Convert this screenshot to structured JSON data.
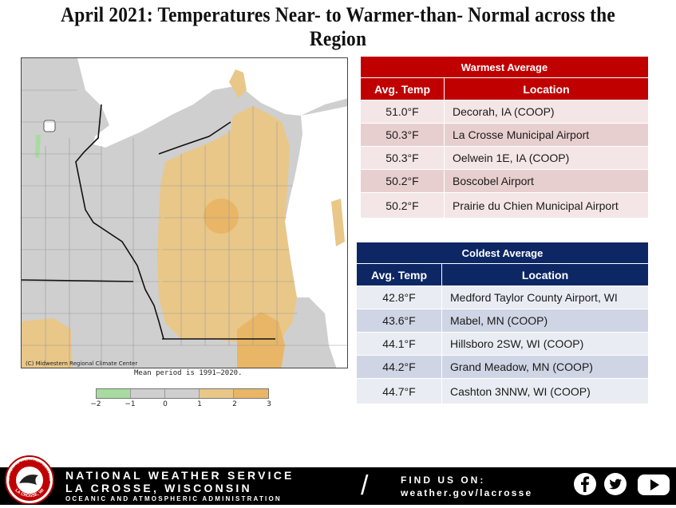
{
  "title": "April 2021: Temperatures Near- to Warmer-than- Normal across the Region",
  "map": {
    "credit": "(C) Midwestern Regional Climate Center",
    "period_note": "Mean period is 1991–2020.",
    "legend": {
      "ticks": [
        "−2",
        "−1",
        "0",
        "1",
        "2",
        "3"
      ],
      "colors": [
        "#a8dba0",
        "#cfcfcf",
        "#cfcfcf",
        "#e9c788",
        "#e8b666"
      ]
    }
  },
  "warmest": {
    "title": "Warmest Average",
    "col_temp": "Avg. Temp",
    "col_loc": "Location",
    "rows": [
      {
        "temp": "51.0°F",
        "loc": "Decorah, IA (COOP)"
      },
      {
        "temp": "50.3°F",
        "loc": "La Crosse Municipal Airport"
      },
      {
        "temp": "50.3°F",
        "loc": "Oelwein 1E, IA (COOP)"
      },
      {
        "temp": "50.2°F",
        "loc": "Boscobel Airport"
      },
      {
        "temp": "50.2°F",
        "loc": "Prairie du Chien Municipal Airport"
      }
    ]
  },
  "coldest": {
    "title": "Coldest Average",
    "col_temp": "Avg. Temp",
    "col_loc": "Location",
    "rows": [
      {
        "temp": "42.8°F",
        "loc": "Medford Taylor County Airport, WI"
      },
      {
        "temp": "43.6°F",
        "loc": "Mabel, MN (COOP)"
      },
      {
        "temp": "44.1°F",
        "loc": "Hillsboro 2SW, WI (COOP)"
      },
      {
        "temp": "44.2°F",
        "loc": "Grand Meadow, MN (COOP)"
      },
      {
        "temp": "44.7°F",
        "loc": "Cashton 3NNW, WI (COOP)"
      }
    ]
  },
  "footer": {
    "line1": "NATIONAL WEATHER SERVICE",
    "line2": "LA CROSSE, WISCONSIN",
    "line3": "OCEANIC AND ATMOSPHERIC ADMINISTRATION",
    "find_label": "FIND US ON:",
    "website": "weather.gov/lacrosse",
    "logo_top": "NATIONAL WEATHER SERVICE",
    "logo_bottom": "LA CROSSE, WI",
    "icons": [
      "facebook-icon",
      "twitter-icon",
      "youtube-icon"
    ]
  },
  "colors": {
    "warm_header": "#c00000",
    "cold_header": "#0d2765",
    "above_normal": "#e8b666",
    "normal": "#cfcfcf",
    "below_normal": "#a8dba0"
  }
}
